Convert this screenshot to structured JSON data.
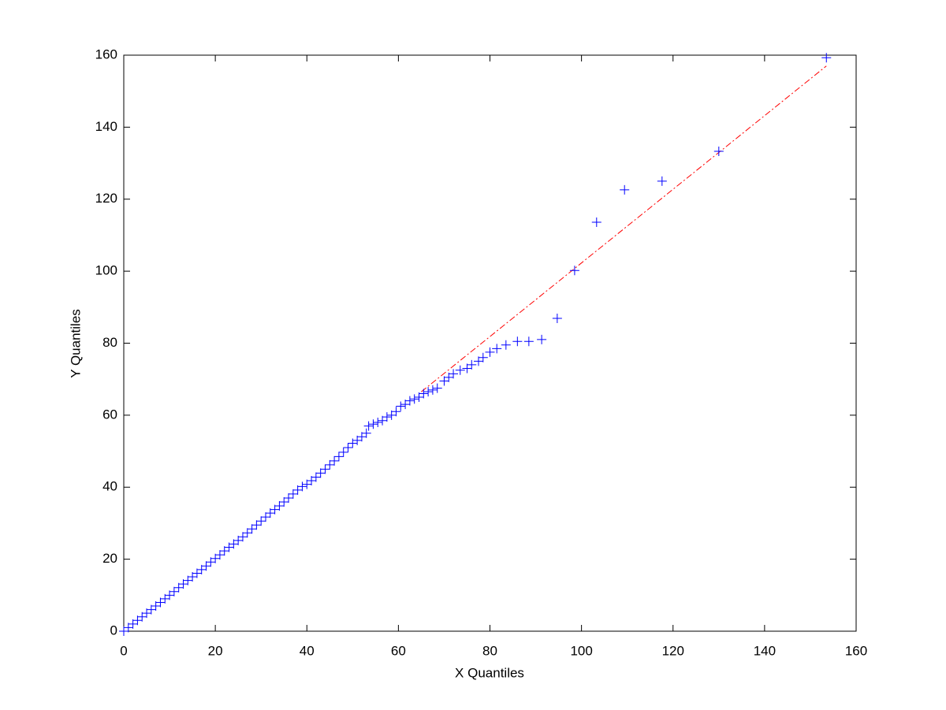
{
  "chart_data": {
    "type": "scatter",
    "xlabel": "X Quantiles",
    "ylabel": "Y Quantiles",
    "xlim": [
      0,
      160
    ],
    "ylim": [
      0,
      160
    ],
    "xticks": [
      0,
      20,
      40,
      60,
      80,
      100,
      120,
      140,
      160
    ],
    "yticks": [
      0,
      20,
      40,
      60,
      80,
      100,
      120,
      140,
      160
    ],
    "grid": false,
    "series": [
      {
        "color": "#0000ff",
        "marker": "+",
        "x": [
          0,
          1,
          2,
          3,
          4,
          5,
          6,
          7,
          8,
          9,
          10,
          11,
          12,
          13,
          14,
          15,
          16,
          17,
          18,
          19,
          20,
          21,
          22,
          23,
          24,
          25,
          26,
          27,
          28,
          29,
          30,
          31,
          32,
          33,
          34,
          35,
          36,
          37,
          38,
          39,
          40,
          41,
          42,
          43,
          44,
          45,
          46,
          47,
          48,
          49,
          50,
          51,
          52,
          53,
          53.5,
          54.5,
          55.5,
          56.5,
          57.5,
          58.5,
          59.5,
          60.5,
          61.5,
          62.5,
          63.5,
          64.5,
          65.5,
          66.5,
          67.5,
          68.5,
          70,
          71,
          72,
          73.5,
          75,
          76,
          77.5,
          78.5,
          80,
          81.5,
          83.5,
          86,
          88.5,
          91.3,
          94.7,
          98.5,
          103.3,
          109.4,
          117.6,
          130,
          153.5
        ],
        "values": [
          0,
          1,
          2,
          3,
          4,
          5,
          6,
          7,
          8,
          9,
          10,
          11,
          12.1,
          13.1,
          14.1,
          15.1,
          16.1,
          17.1,
          18.1,
          19.2,
          20.2,
          21.2,
          22.3,
          23.3,
          24.2,
          25.2,
          26.2,
          27.3,
          28.4,
          29.5,
          30.6,
          31.7,
          32.8,
          33.8,
          34.8,
          35.9,
          37,
          38.1,
          39.2,
          40.2,
          40.8,
          41.8,
          42.8,
          43.9,
          45,
          46.2,
          47.3,
          48.5,
          49.7,
          51,
          52.2,
          53,
          54,
          55,
          57,
          57.5,
          58,
          58.5,
          59.5,
          60,
          61,
          62.5,
          63,
          64,
          64.5,
          65,
          66,
          66.5,
          67,
          67.5,
          69.5,
          70.5,
          71.5,
          72.5,
          73,
          74,
          75,
          76,
          77.5,
          78.5,
          79.5,
          80.5,
          80.5,
          81,
          86.9,
          100.2,
          113.6,
          122.6,
          125,
          133.3,
          159.3
        ]
      }
    ],
    "reference_line": {
      "color": "#ff0000",
      "x": [
        65,
        153.5
      ],
      "values": [
        66.5,
        157
      ]
    }
  }
}
